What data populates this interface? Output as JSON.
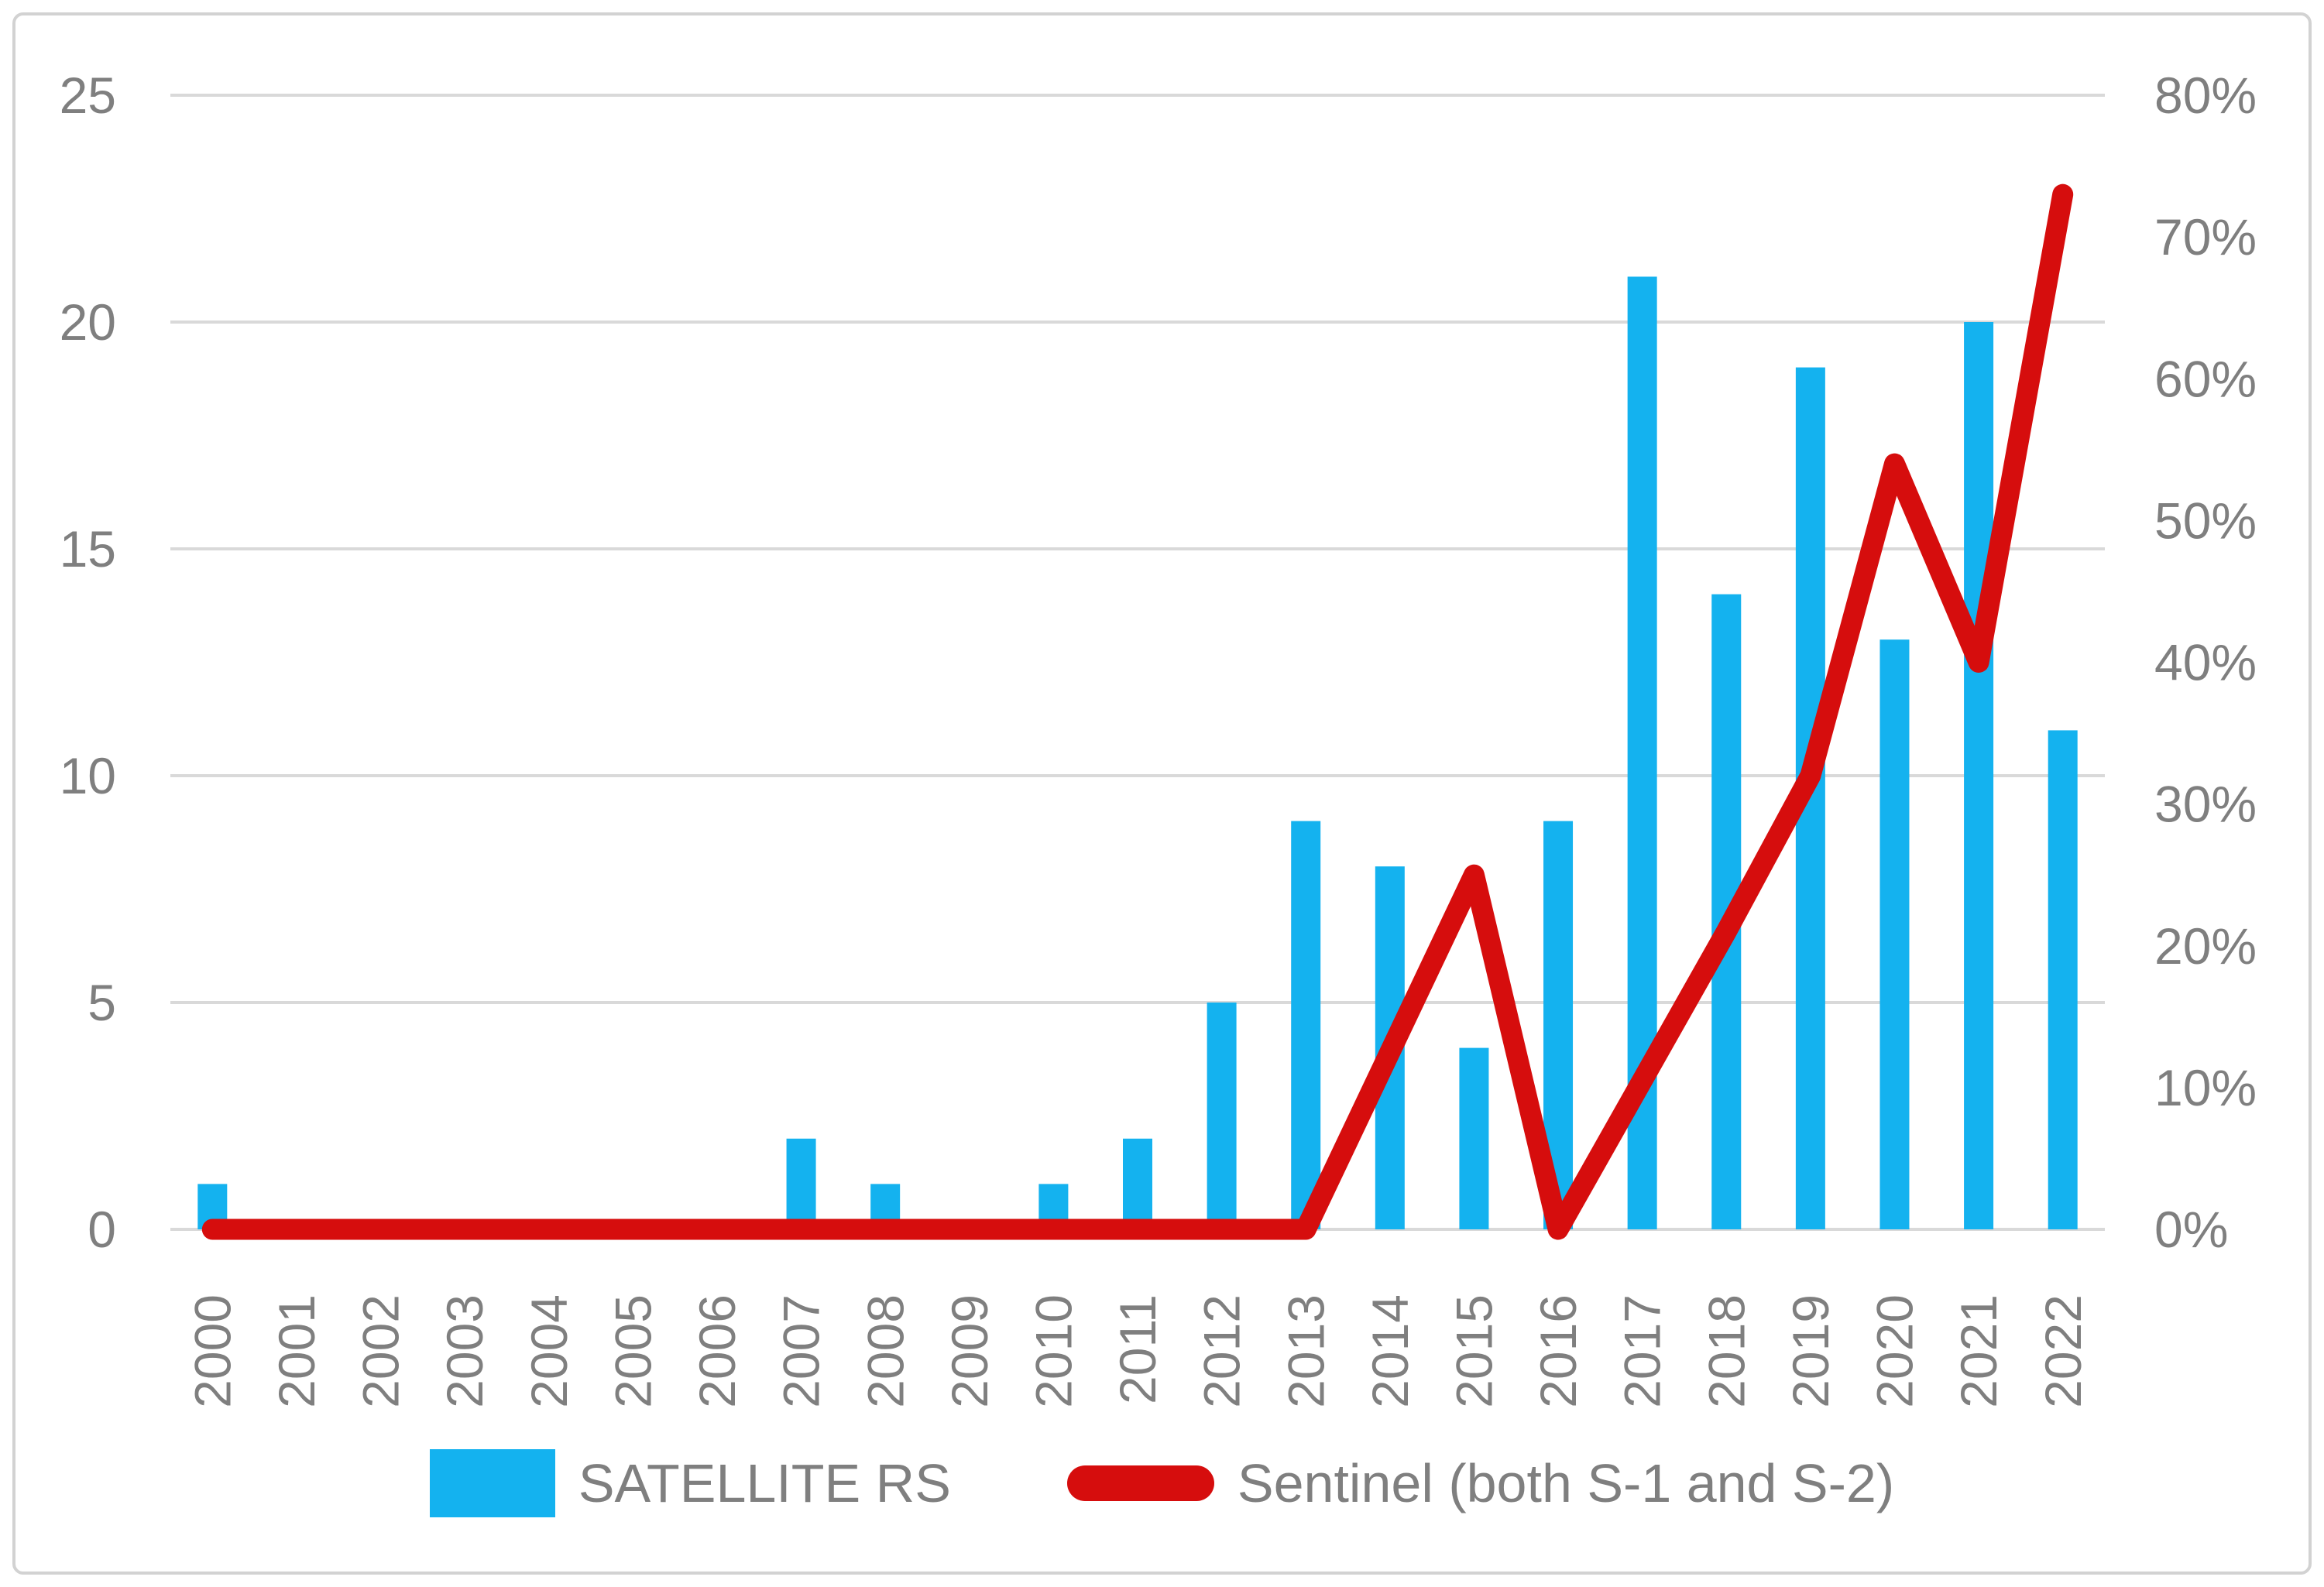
{
  "chart_data": {
    "type": "bar",
    "subtype": "bar-line-combo",
    "categories": [
      "2000",
      "2001",
      "2002",
      "2003",
      "2004",
      "2005",
      "2006",
      "2007",
      "2008",
      "2009",
      "2010",
      "2011",
      "2012",
      "2013",
      "2014",
      "2015",
      "2016",
      "2017",
      "2018",
      "2019",
      "2020",
      "2021",
      "2022"
    ],
    "series": [
      {
        "name": "SATELLITE RS",
        "type": "bar",
        "axis": "left",
        "color": "#14b2ef",
        "values": [
          1,
          0,
          0,
          0,
          0,
          0,
          0,
          2,
          1,
          0,
          1,
          2,
          5,
          9,
          8,
          4,
          9,
          21,
          14,
          19,
          13,
          20,
          11
        ]
      },
      {
        "name": "Sentinel (both S-1 and S-2)",
        "type": "line",
        "axis": "right",
        "color": "#d60d0d",
        "values_percent": [
          0,
          0,
          0,
          0,
          0,
          0,
          0,
          0,
          0,
          0,
          0,
          0,
          0,
          0,
          12.5,
          25,
          0,
          10.5,
          21,
          32,
          54,
          40,
          73
        ]
      }
    ],
    "title": "",
    "xlabel": "",
    "ylabel": "",
    "left_axis": {
      "ticks": [
        0,
        5,
        10,
        15,
        20,
        25
      ],
      "range": [
        0,
        25
      ]
    },
    "right_axis": {
      "tick_labels": [
        "0%",
        "10%",
        "20%",
        "30%",
        "40%",
        "50%",
        "60%",
        "70%",
        "80%"
      ],
      "ticks_percent": [
        0,
        10,
        20,
        30,
        40,
        50,
        60,
        70,
        80
      ],
      "range_percent": [
        0,
        80
      ]
    },
    "grid": true,
    "legend_position": "bottom"
  },
  "legend": {
    "items": [
      {
        "label": "SATELLITE RS",
        "marker": "square",
        "color": "#14b2ef"
      },
      {
        "label": "Sentinel (both S-1 and S-2)",
        "marker": "line",
        "color": "#d60d0d"
      }
    ]
  },
  "colors": {
    "bar": "#14b2ef",
    "line": "#d60d0d",
    "gridline": "#d9d9d9",
    "axis_text": "#7f7f7f",
    "border": "#d2d2d2",
    "background": "#ffffff"
  }
}
